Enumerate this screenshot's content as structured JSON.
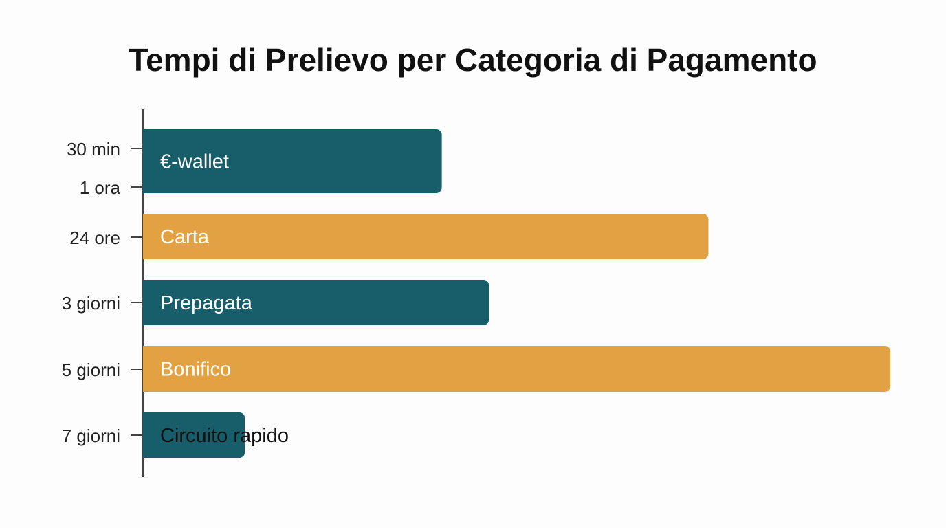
{
  "chart_data": {
    "type": "bar",
    "orientation": "horizontal",
    "title": "Tempi di Prelievo per Categoria di Pagamento",
    "xlabel": "",
    "ylabel": "",
    "y_tick_labels": [
      "30 min",
      "1 ora",
      "24 ore",
      "3 giorni",
      "5 giorni",
      "7 giorni"
    ],
    "categories": [
      "€-wallet",
      "Carta",
      "Prepagata",
      "Bonifico",
      "Circuito rapido"
    ],
    "values": [
      437,
      827,
      506,
      1093,
      149
    ],
    "value_axis": {
      "visible": false,
      "range": [
        0,
        1100
      ]
    },
    "colors": [
      "#175d6a",
      "#e2a244",
      "#175d6a",
      "#e2a244",
      "#175d6a"
    ],
    "label_colors": [
      "#ffffff",
      "#ffffff",
      "#ffffff",
      "#ffffff",
      "#111111"
    ],
    "grid": false,
    "legend": "none"
  }
}
